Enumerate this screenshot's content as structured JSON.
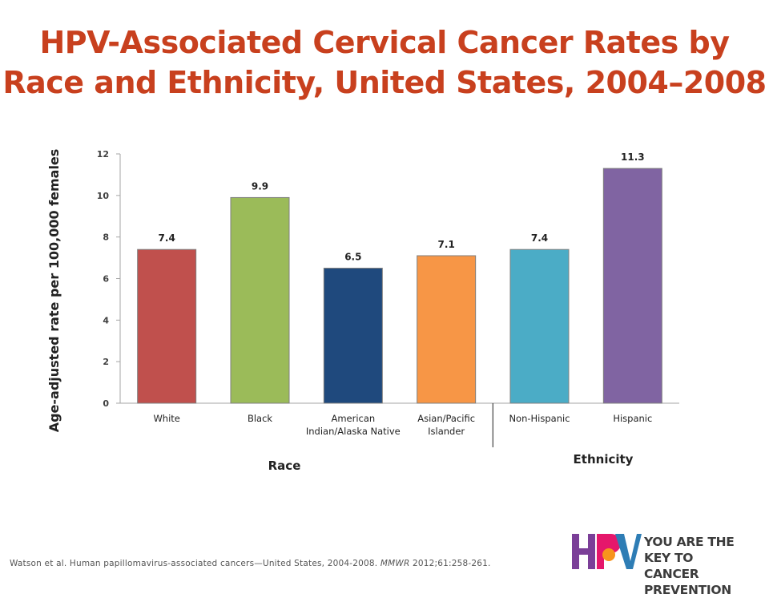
{
  "title_line1": "HPV-Associated Cervical Cancer Rates by",
  "title_line2": "Race and Ethnicity, United States, 2004–2008",
  "chart_data": {
    "type": "bar",
    "ylabel": "Age-adjusted rate per 100,000 females",
    "ylim": [
      0,
      12
    ],
    "yticks": [
      0,
      2,
      4,
      6,
      8,
      10,
      12
    ],
    "categories": [
      "White",
      "Black",
      "American Indian/Alaska Native",
      "Asian/Pacific Islander",
      "Non-Hispanic",
      "Hispanic"
    ],
    "category_lines": [
      [
        "White"
      ],
      [
        "Black"
      ],
      [
        "American",
        "Indian/Alaska Native"
      ],
      [
        "Asian/Pacific",
        "Islander"
      ],
      [
        "Non-Hispanic"
      ],
      [
        "Hispanic"
      ]
    ],
    "values": [
      7.4,
      9.9,
      6.5,
      7.1,
      7.4,
      11.3
    ],
    "value_labels": [
      "7.4",
      "9.9",
      "6.5",
      "7.1",
      "7.4",
      "11.3"
    ],
    "colors": [
      "#C0504D",
      "#9BBB59",
      "#1F497D",
      "#F79646",
      "#4BACC6",
      "#8064A2"
    ],
    "groups": [
      {
        "label": "Race",
        "categories": [
          "White",
          "Black",
          "American Indian/Alaska Native",
          "Asian/Pacific Islander"
        ]
      },
      {
        "label": "Ethnicity",
        "categories": [
          "Non-Hispanic",
          "Hispanic"
        ]
      }
    ]
  },
  "footer": {
    "prefix": "Watson et al. Human papillomavirus-associated cancers—United States, 2004-2008. ",
    "journal": "MMWR",
    "suffix": " 2012;61:258-261."
  },
  "logo": {
    "letters": "HPV",
    "line1": "YOU ARE THE KEY TO",
    "line2": "CANCER PREVENTION",
    "colors": [
      "#7B3F98",
      "#E5176B",
      "#F7941D",
      "#2E7DB5"
    ]
  }
}
